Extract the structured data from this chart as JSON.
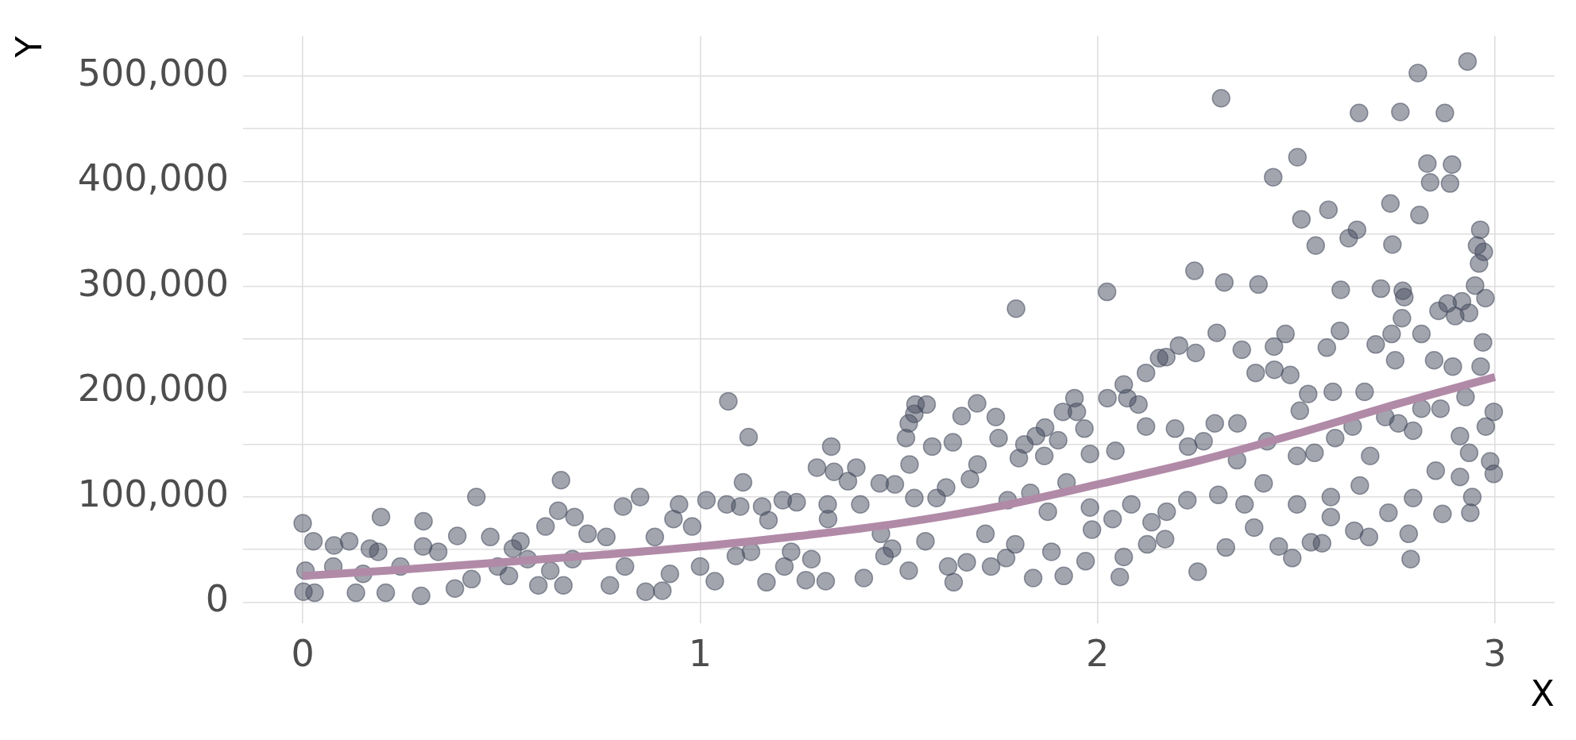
{
  "chart_data": {
    "type": "scatter",
    "xlabel": "X",
    "ylabel": "Y",
    "xlim": [
      -0.15,
      3.15
    ],
    "xticks": [
      0,
      1,
      2,
      3
    ],
    "ylim": [
      -20000,
      538000
    ],
    "yticks": [
      0,
      {
        "value": 50000,
        "label": null
      },
      {
        "value": 100000,
        "label": "100,000"
      },
      {
        "value": 150000,
        "label": null
      },
      {
        "value": 200000,
        "label": "200,000"
      },
      {
        "value": 250000,
        "label": null
      },
      {
        "value": 300000,
        "label": "300,000"
      },
      {
        "value": 350000,
        "label": null
      },
      {
        "value": 400000,
        "label": "400,000"
      },
      {
        "value": 450000,
        "label": null
      },
      {
        "value": 500000,
        "label": "500,000"
      }
    ],
    "grid": true,
    "legend": false,
    "marker": "circle",
    "series": [
      {
        "color": "#454c5e",
        "x": [
          0,
          0.027,
          0.079,
          0.117,
          0.197,
          0.304,
          0.437,
          0.389,
          0.65,
          0.643,
          0.611,
          0.684,
          0.806,
          0.849,
          0.947,
          1.016,
          0.169,
          0.472,
          0.933,
          0.002,
          0.03,
          0.134,
          0.209,
          0.298,
          0.383,
          0.519,
          0.593,
          0.656,
          0.773,
          0.863,
          0.905,
          1.037,
          0.007,
          0.077,
          0.152,
          0.246,
          0.341,
          0.303,
          0.425,
          0.529,
          0.566,
          0.623,
          0.717,
          0.764,
          0.811,
          0.886,
          0.924,
          0.98,
          1.0,
          0.548,
          0.679,
          0.491,
          0.19,
          1.071,
          1.122,
          1.108,
          1.33,
          1.294,
          1.337,
          1.393,
          1.372,
          1.452,
          1.49,
          1.527,
          1.518,
          1.525,
          1.539,
          1.542,
          1.57,
          1.584,
          1.636,
          1.658,
          1.697,
          1.744,
          1.751,
          1.795,
          1.802,
          1.816,
          1.845,
          1.868,
          1.866,
          1.901,
          1.913,
          1.942,
          1.948,
          1.967,
          1.981,
          2.024,
          2.025,
          2.066,
          2.075,
          2.103,
          2.122,
          2.122,
          2.155,
          2.045,
          1.167,
          1.266,
          1.316,
          1.412,
          1.525,
          1.638,
          1.732,
          1.77,
          1.838,
          1.915,
          1.97,
          2.056,
          2.066,
          2.125,
          1.067,
          1.101,
          1.156,
          1.208,
          1.243,
          1.321,
          1.172,
          1.229,
          1.322,
          1.455,
          1.483,
          1.539,
          1.595,
          1.619,
          1.698,
          1.679,
          1.624,
          1.671,
          1.718,
          1.793,
          1.875,
          1.884,
          1.922,
          1.981,
          1.986,
          2.038,
          2.085,
          2.136,
          1.774,
          1.831,
          1.403,
          1.09,
          1.128,
          1.212,
          1.28,
          1.464,
          1.567,
          2.931,
          2.806,
          2.311,
          2.658,
          2.762,
          2.874,
          2.503,
          2.442,
          2.83,
          2.837,
          2.892,
          2.887,
          2.737,
          2.81,
          2.513,
          2.581,
          2.549,
          2.632,
          2.653,
          2.742,
          2.963,
          2.955,
          2.972,
          2.96,
          2.95,
          2.976,
          2.244,
          2.319,
          2.405,
          2.612,
          2.713,
          2.768,
          2.772,
          2.3,
          2.61,
          2.766,
          2.858,
          2.881,
          2.917,
          2.9,
          2.935,
          2.97,
          2.964,
          2.205,
          2.173,
          2.247,
          2.363,
          2.444,
          2.473,
          2.577,
          2.7,
          2.74,
          2.749,
          2.815,
          2.847,
          2.894,
          2.445,
          2.485,
          2.398,
          2.252,
          2.49,
          2.788,
          2.456,
          2.537,
          2.565,
          2.683,
          2.783,
          2.323,
          2.17,
          2.646,
          2.394,
          2.732,
          2.938,
          2.868,
          2.587,
          2.66,
          2.195,
          2.295,
          2.352,
          2.427,
          2.228,
          2.304,
          2.418,
          2.502,
          2.53,
          2.592,
          2.672,
          2.509,
          2.598,
          2.642,
          2.724,
          2.757,
          2.794,
          2.815,
          2.863,
          2.912,
          2.935,
          2.977,
          2.997,
          2.988,
          2.997,
          2.912,
          2.851,
          2.794,
          2.686,
          2.587,
          2.502,
          2.37,
          2.226,
          2.174,
          2.267,
          2.351,
          2.546,
          2.926,
          2.943
        ],
        "values": [
          75000,
          58000,
          54000,
          58000,
          81000,
          77000,
          100000,
          63000,
          116000,
          87000,
          72000,
          81000,
          91000,
          100000,
          93000,
          97000,
          51000,
          62000,
          79000,
          10000,
          9000,
          9000,
          9000,
          6000,
          13000,
          25000,
          16000,
          16000,
          16000,
          10000,
          11000,
          20000,
          30000,
          34000,
          27000,
          34000,
          48000,
          53000,
          22000,
          51000,
          41000,
          30000,
          65000,
          62000,
          34000,
          62000,
          27000,
          72000,
          34000,
          58000,
          41000,
          34000,
          48000,
          191000,
          157000,
          114000,
          148000,
          128000,
          124000,
          128000,
          115000,
          113000,
          112000,
          131000,
          156000,
          170000,
          179000,
          188000,
          188000,
          148000,
          152000,
          177000,
          189000,
          176000,
          156000,
          279000,
          137000,
          150000,
          158000,
          166000,
          139000,
          154000,
          181000,
          194000,
          181000,
          165000,
          141000,
          295000,
          194000,
          207000,
          194000,
          188000,
          218000,
          167000,
          232000,
          144000,
          19000,
          21000,
          20000,
          23000,
          30000,
          19000,
          34000,
          42000,
          23000,
          25000,
          39000,
          24000,
          43000,
          55000,
          93000,
          91000,
          91000,
          97000,
          95000,
          93000,
          78000,
          48000,
          79000,
          65000,
          51000,
          99000,
          99000,
          109000,
          131000,
          117000,
          34000,
          38000,
          65000,
          55000,
          86000,
          48000,
          114000,
          90000,
          69000,
          79000,
          93000,
          76000,
          97000,
          104000,
          93000,
          44000,
          48000,
          34000,
          41000,
          44000,
          58000,
          514000,
          503000,
          479000,
          465000,
          466000,
          465000,
          423000,
          404000,
          417000,
          399000,
          416000,
          398000,
          379000,
          368000,
          364000,
          373000,
          339000,
          346000,
          354000,
          340000,
          354000,
          339000,
          333000,
          322000,
          301000,
          289000,
          315000,
          304000,
          302000,
          297000,
          298000,
          296000,
          290000,
          256000,
          258000,
          270000,
          277000,
          284000,
          286000,
          272000,
          275000,
          247000,
          224000,
          244000,
          233000,
          237000,
          240000,
          243000,
          255000,
          242000,
          245000,
          255000,
          230000,
          255000,
          230000,
          224000,
          221000,
          216000,
          218000,
          29000,
          42000,
          41000,
          53000,
          57000,
          56000,
          62000,
          65000,
          52000,
          60000,
          68000,
          71000,
          85000,
          85000,
          84000,
          81000,
          111000,
          165000,
          170000,
          170000,
          153000,
          148000,
          102000,
          113000,
          139000,
          198000,
          200000,
          200000,
          182000,
          156000,
          167000,
          176000,
          170000,
          163000,
          184000,
          184000,
          158000,
          142000,
          167000,
          181000,
          134000,
          122000,
          119000,
          125000,
          99000,
          139000,
          100000,
          93000,
          93000,
          97000,
          86000,
          153000,
          135000,
          142000,
          195000,
          100000
        ]
      },
      {
        "type": "line",
        "color": "#b18aa8",
        "marker": "none",
        "x": [
          0,
          0.25,
          0.5,
          0.75,
          1,
          1.25,
          1.5,
          1.75,
          2,
          2.25,
          2.5,
          2.75,
          3
        ],
        "values": [
          25000,
          31000,
          38000,
          45000,
          53000,
          63000,
          75000,
          91000,
          112000,
          134000,
          160000,
          188000,
          214000
        ]
      }
    ]
  }
}
